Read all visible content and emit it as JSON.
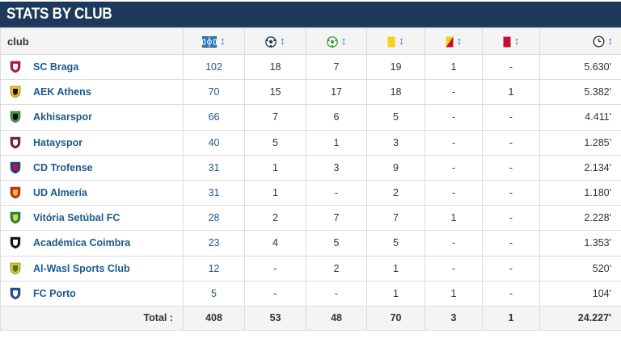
{
  "header": {
    "title": "STATS BY CLUB"
  },
  "columns": {
    "club": "club",
    "icons": [
      "appearances-icon",
      "goals-icon",
      "assists-icon",
      "yellow-card-icon",
      "second-yellow-card-icon",
      "red-card-icon",
      "minutes-clock-icon"
    ],
    "sort_glyph": "↕"
  },
  "rows": [
    {
      "club": "SC Braga",
      "apps": "102",
      "goals": "18",
      "assists": "7",
      "yellow": "19",
      "second_yellow": "1",
      "red": "-",
      "minutes": "5.630'",
      "crest": [
        "#c8102e",
        "#ffffff"
      ]
    },
    {
      "club": "AEK Athens",
      "apps": "70",
      "goals": "15",
      "assists": "17",
      "yellow": "18",
      "second_yellow": "-",
      "red": "1",
      "minutes": "5.382'",
      "crest": [
        "#f5c400",
        "#111111"
      ]
    },
    {
      "club": "Akhisarspor",
      "apps": "66",
      "goals": "7",
      "assists": "6",
      "yellow": "5",
      "second_yellow": "-",
      "red": "-",
      "minutes": "4.411'",
      "crest": [
        "#3a9a3a",
        "#000000"
      ]
    },
    {
      "club": "Hatayspor",
      "apps": "40",
      "goals": "5",
      "assists": "1",
      "yellow": "3",
      "second_yellow": "-",
      "red": "-",
      "minutes": "1.285'",
      "crest": [
        "#7a1e2c",
        "#ffffff"
      ]
    },
    {
      "club": "CD Trofense",
      "apps": "31",
      "goals": "1",
      "assists": "3",
      "yellow": "9",
      "second_yellow": "-",
      "red": "-",
      "minutes": "2.134'",
      "crest": [
        "#1d3d8f",
        "#d1122e"
      ]
    },
    {
      "club": "UD Almería",
      "apps": "31",
      "goals": "1",
      "assists": "-",
      "yellow": "2",
      "second_yellow": "-",
      "red": "-",
      "minutes": "1.180'",
      "crest": [
        "#d7261e",
        "#f0c419"
      ]
    },
    {
      "club": "Vitória Setúbal FC",
      "apps": "28",
      "goals": "2",
      "assists": "7",
      "yellow": "7",
      "second_yellow": "1",
      "red": "-",
      "minutes": "2.228'",
      "crest": [
        "#1e8a3c",
        "#e8d14a"
      ]
    },
    {
      "club": "Académica Coimbra",
      "apps": "23",
      "goals": "4",
      "assists": "5",
      "yellow": "5",
      "second_yellow": "-",
      "red": "-",
      "minutes": "1.353'",
      "crest": [
        "#111111",
        "#ffffff"
      ]
    },
    {
      "club": "Al-Wasl Sports Club",
      "apps": "12",
      "goals": "-",
      "assists": "2",
      "yellow": "1",
      "second_yellow": "-",
      "red": "-",
      "minutes": "520'",
      "crest": [
        "#e5c316",
        "#2f7a2f"
      ]
    },
    {
      "club": "FC Porto",
      "apps": "5",
      "goals": "-",
      "assists": "-",
      "yellow": "1",
      "second_yellow": "1",
      "red": "-",
      "minutes": "104'",
      "crest": [
        "#1c4f9c",
        "#ffffff"
      ]
    }
  ],
  "totals": {
    "label": "Total :",
    "apps": "408",
    "goals": "53",
    "assists": "48",
    "yellow": "70",
    "second_yellow": "3",
    "red": "1",
    "minutes": "24.227'"
  },
  "colors": {
    "header_bg": "#1d3a5c",
    "link": "#1a5a8e",
    "sort_arrow": "#2a7bbf",
    "yellow_card": "#f4d21a",
    "red_card": "#c8102e"
  }
}
